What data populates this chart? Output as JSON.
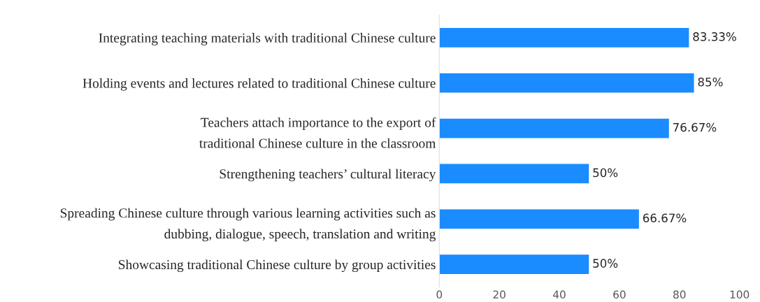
{
  "chart_data": {
    "type": "bar",
    "orientation": "horizontal",
    "categories": [
      "Integrating teaching materials with traditional Chinese culture",
      "Holding events and lectures related to traditional Chinese culture",
      "Teachers attach importance to the export of\ntraditional Chinese culture in the classroom",
      "Strengthening teachers’ cultural literacy",
      "Spreading Chinese culture through various learning activities such as\ndubbing, dialogue, speech, translation and writing",
      "Showcasing traditional Chinese culture by group activities"
    ],
    "values": [
      83.33,
      85,
      76.67,
      50,
      66.67,
      50
    ],
    "value_labels": [
      "83.33%",
      "85%",
      "76.67%",
      "50%",
      "66.67%",
      "50%"
    ],
    "color": "#1a8cff",
    "xlim": [
      0,
      100
    ],
    "xticks": [
      0,
      20,
      40,
      60,
      80,
      100
    ],
    "grid": false
  }
}
